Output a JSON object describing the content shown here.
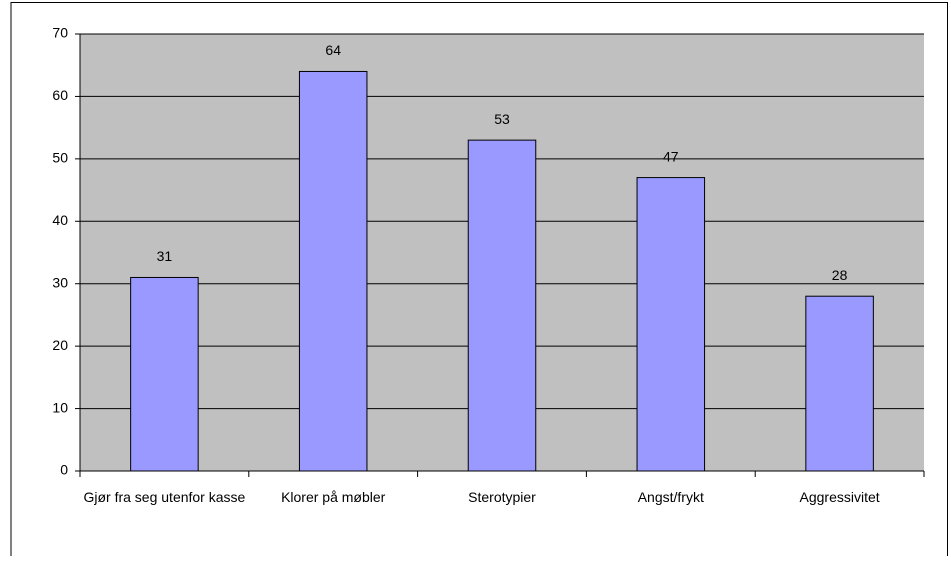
{
  "chart_data": {
    "type": "bar",
    "categories": [
      "Gjør fra seg utenfor kasse",
      "Klorer på møbler",
      "Sterotypier",
      "Angst/frykt",
      "Aggressivitet"
    ],
    "values": [
      31,
      64,
      53,
      47,
      28
    ],
    "color": "#9999ff",
    "plot_background": "#c0c0c0",
    "ylim": [
      0,
      70
    ],
    "yticks": [
      0,
      10,
      20,
      30,
      40,
      50,
      60,
      70
    ],
    "grid": true
  }
}
